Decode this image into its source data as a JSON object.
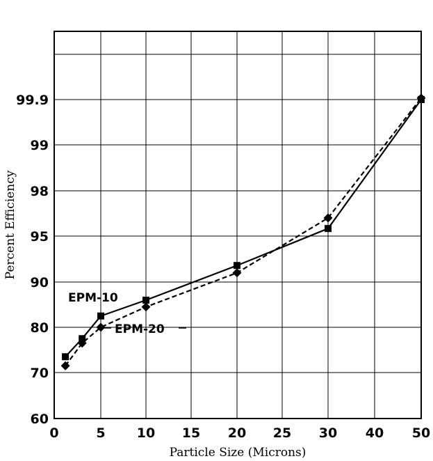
{
  "chart_data": {
    "type": "line",
    "title": "",
    "xlabel": "Particle Size (Microns)",
    "ylabel": "Percent Efficiency",
    "xlim": [
      0,
      50
    ],
    "xticks": [
      0,
      5,
      10,
      15,
      20,
      25,
      30,
      40,
      50
    ],
    "yticks": [
      60,
      70,
      80,
      90,
      95,
      98,
      99,
      99.9
    ],
    "ytick_labels": [
      "60",
      "70",
      "80",
      "90",
      "95",
      "98",
      "99",
      "99.9"
    ],
    "grid": true,
    "series": [
      {
        "name": "EPM-10",
        "line_style": "solid",
        "marker": "square",
        "color": "#000000",
        "x": [
          1.2,
          3,
          5,
          10,
          20,
          30,
          50
        ],
        "y": [
          73.5,
          77.5,
          82.5,
          86,
          91.8,
          95.5,
          99.9
        ]
      },
      {
        "name": "EPM-20",
        "line_style": "dashed",
        "marker": "diamond",
        "color": "#000000",
        "x": [
          1.2,
          3,
          5,
          10,
          20,
          30,
          50
        ],
        "y": [
          71.5,
          76.5,
          80,
          84.5,
          91,
          96.2,
          99.93
        ]
      }
    ]
  }
}
